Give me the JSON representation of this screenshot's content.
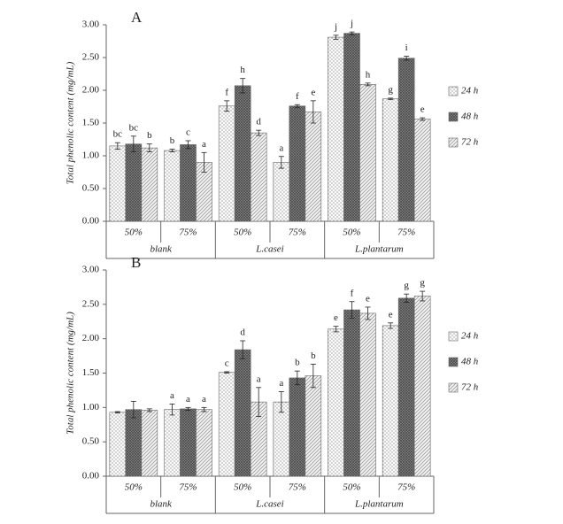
{
  "chart_data": [
    {
      "type": "bar",
      "panel": "A",
      "ylabel": "Total phenolic content (mg/mL)",
      "categories": [
        "50%",
        "75%",
        "50%",
        "75%",
        "50%",
        "75%"
      ],
      "groups": [
        "blank",
        "L.casei",
        "L.plantarum"
      ],
      "ylim": [
        0,
        3
      ],
      "yticks": [
        {
          "value": 0,
          "label": "0.00"
        },
        {
          "value": 0.5,
          "label": "0.50"
        },
        {
          "value": 1,
          "label": "1.00"
        },
        {
          "value": 1.5,
          "label": "1.50"
        },
        {
          "value": 2,
          "label": "2.00"
        },
        {
          "value": 2.5,
          "label": "2.50"
        },
        {
          "value": 3,
          "label": "3.00"
        }
      ],
      "series": [
        {
          "name": "24 h",
          "pattern": "dots",
          "values": [
            1.15,
            1.08,
            1.76,
            0.9,
            2.81,
            1.87
          ],
          "errors": [
            0.05,
            0.02,
            0.08,
            0.09,
            0.03,
            0.01
          ],
          "letters": [
            "bc",
            "b",
            "f",
            "a",
            "j",
            "g"
          ]
        },
        {
          "name": "48 h",
          "pattern": "grid",
          "values": [
            1.18,
            1.17,
            2.07,
            1.76,
            2.87,
            2.49
          ],
          "errors": [
            0.12,
            0.06,
            0.11,
            0.02,
            0.02,
            0.03
          ],
          "letters": [
            "bc",
            "c",
            "h",
            "f",
            "j",
            "i"
          ]
        },
        {
          "name": "72 h",
          "pattern": "hatch",
          "values": [
            1.12,
            0.9,
            1.35,
            1.67,
            2.09,
            1.56
          ],
          "errors": [
            0.06,
            0.15,
            0.04,
            0.17,
            0.02,
            0.02
          ],
          "letters": [
            "b",
            "a",
            "d",
            "e",
            "h",
            "e"
          ]
        }
      ]
    },
    {
      "type": "bar",
      "panel": "B",
      "ylabel": "Total phenolic content (mg/mL)",
      "categories": [
        "50%",
        "75%",
        "50%",
        "75%",
        "50%",
        "75%"
      ],
      "groups": [
        "blank",
        "L.casei",
        "L.plantarum"
      ],
      "ylim": [
        0,
        3
      ],
      "yticks": [
        {
          "value": 0,
          "label": "0.00"
        },
        {
          "value": 0.5,
          "label": "0.50"
        },
        {
          "value": 1,
          "label": "1.00"
        },
        {
          "value": 1.5,
          "label": "1.50"
        },
        {
          "value": 2,
          "label": "2.00"
        },
        {
          "value": 2.5,
          "label": "2.50"
        },
        {
          "value": 3,
          "label": "3.00"
        }
      ],
      "series": [
        {
          "name": "24 h",
          "pattern": "dots",
          "values": [
            0.93,
            0.97,
            1.51,
            1.08,
            2.14,
            2.19
          ],
          "errors": [
            0.01,
            0.08,
            0.01,
            0.15,
            0.04,
            0.04
          ],
          "letters": [
            null,
            "a",
            "c",
            "a",
            "e",
            "e"
          ]
        },
        {
          "name": "48 h",
          "pattern": "grid",
          "values": [
            0.97,
            0.98,
            1.84,
            1.43,
            2.42,
            2.59
          ],
          "errors": [
            0.12,
            0.02,
            0.13,
            0.1,
            0.12,
            0.06
          ],
          "letters": [
            null,
            "a",
            "d",
            "b",
            "f",
            "g"
          ]
        },
        {
          "name": "72 h",
          "pattern": "hatch",
          "values": [
            0.96,
            0.97,
            1.08,
            1.46,
            2.37,
            2.62
          ],
          "errors": [
            0.02,
            0.03,
            0.21,
            0.17,
            0.09,
            0.07
          ],
          "letters": [
            null,
            "a",
            "a",
            "b",
            "e",
            "g"
          ]
        }
      ]
    }
  ]
}
